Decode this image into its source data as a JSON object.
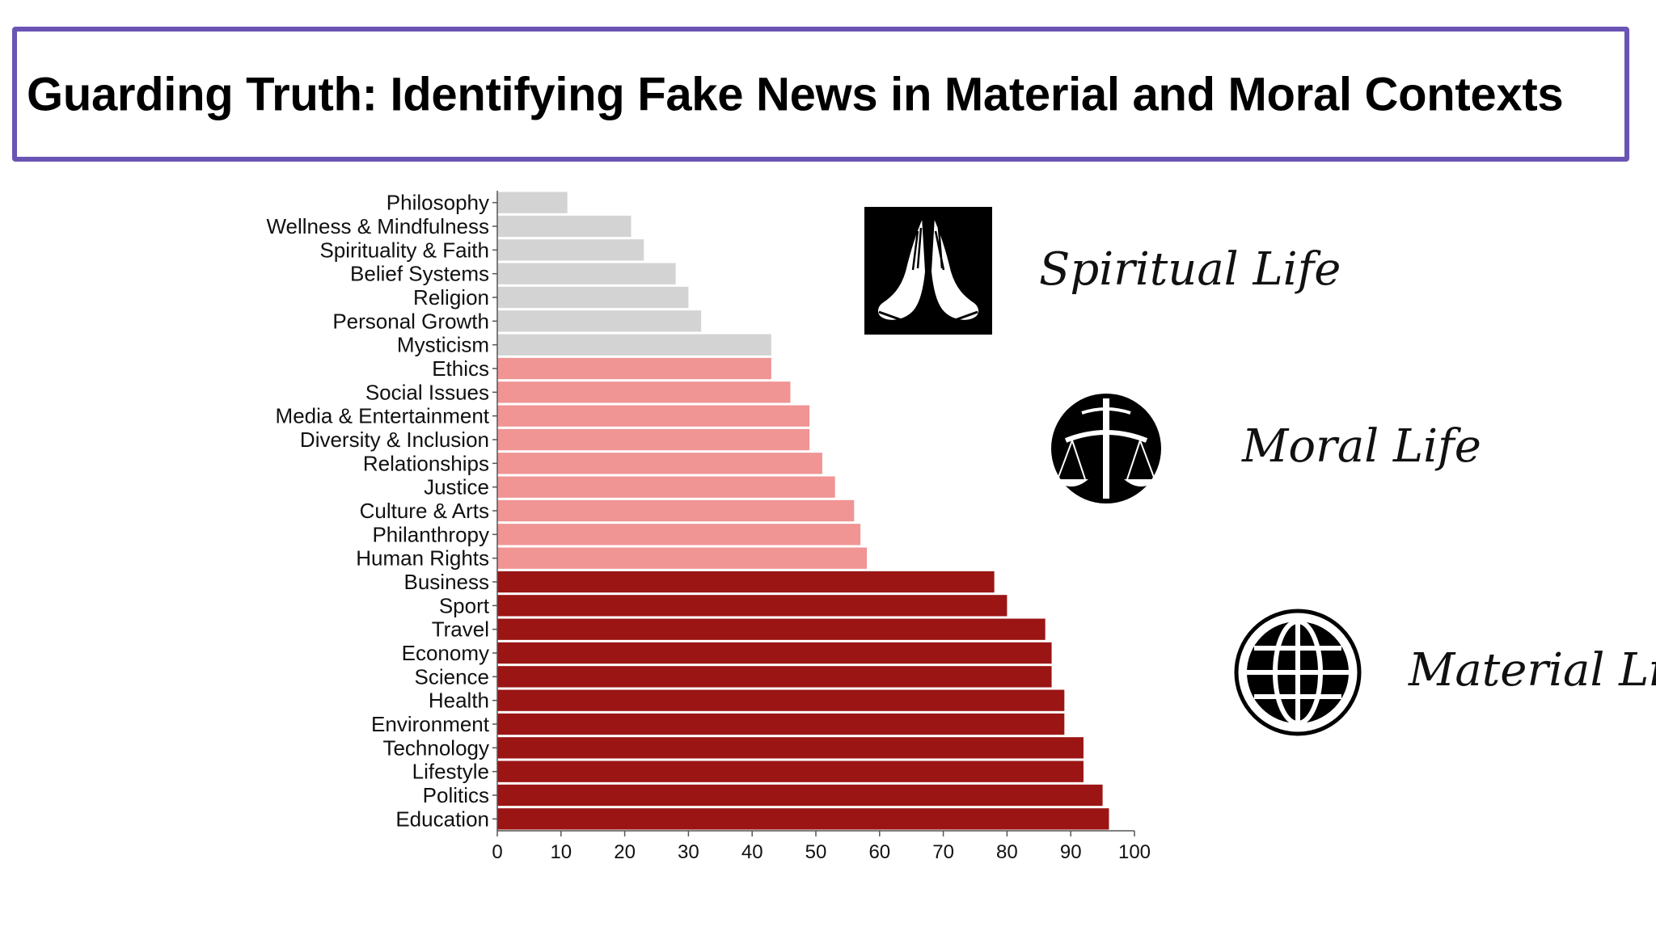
{
  "title": "Guarding Truth: Identifying Fake News in Material and Moral Contexts",
  "chart_data": {
    "type": "bar",
    "orientation": "horizontal",
    "categories": [
      "Philosophy",
      "Wellness & Mindfulness",
      "Spirituality & Faith",
      "Belief Systems",
      "Religion",
      "Personal Growth",
      "Mysticism",
      "Ethics",
      "Social Issues",
      "Media & Entertainment",
      "Diversity & Inclusion",
      "Relationships",
      "Justice",
      "Culture & Arts",
      "Philanthropy",
      "Human Rights",
      "Business",
      "Sport",
      "Travel",
      "Economy",
      "Science",
      "Health",
      "Environment",
      "Technology",
      "Lifestyle",
      "Politics",
      "Education"
    ],
    "values": [
      11,
      21,
      23,
      28,
      30,
      32,
      43,
      43,
      46,
      49,
      49,
      51,
      53,
      56,
      57,
      58,
      78,
      80,
      86,
      87,
      87,
      89,
      89,
      92,
      92,
      95,
      96
    ],
    "groups": [
      "spiritual",
      "spiritual",
      "spiritual",
      "spiritual",
      "spiritual",
      "spiritual",
      "spiritual",
      "moral",
      "moral",
      "moral",
      "moral",
      "moral",
      "moral",
      "moral",
      "moral",
      "moral",
      "material",
      "material",
      "material",
      "material",
      "material",
      "material",
      "material",
      "material",
      "material",
      "material",
      "material"
    ],
    "group_colors": {
      "spiritual": "#d3d3d3",
      "moral": "#f09494",
      "material": "#9b1515"
    },
    "xlim": [
      0,
      100
    ],
    "xticks": [
      0,
      10,
      20,
      30,
      40,
      50,
      60,
      70,
      80,
      90,
      100
    ],
    "grid": false,
    "xlabel": "",
    "ylabel": ""
  },
  "legend": [
    {
      "label": "Spiritual Life",
      "icon": "praying-hands-icon"
    },
    {
      "label": "Moral Life",
      "icon": "scales-of-justice-icon"
    },
    {
      "label": "Material Life",
      "icon": "globe-icon"
    }
  ]
}
